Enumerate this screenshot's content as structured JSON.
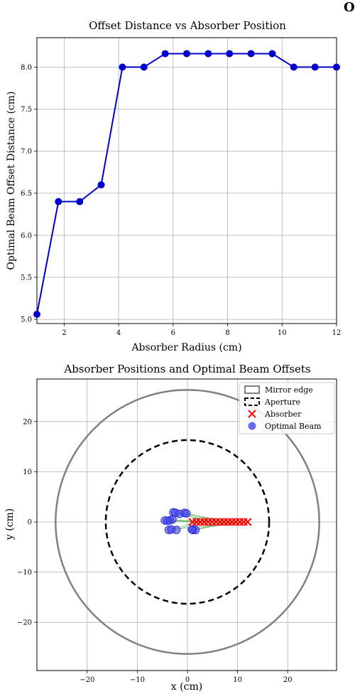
{
  "figure": {
    "suptitle": "O"
  },
  "chart_data": [
    {
      "type": "line",
      "title": "Offset Distance vs Absorber Position",
      "xlabel": "Absorber Radius (cm)",
      "ylabel": "Optimal Beam Offset Distance (cm)",
      "xlim": [
        1.0,
        12.0
      ],
      "ylim": [
        4.95,
        8.35
      ],
      "xticks": [
        2,
        4,
        6,
        8,
        10,
        12
      ],
      "yticks": [
        5.0,
        5.5,
        6.0,
        6.5,
        7.0,
        7.5,
        8.0
      ],
      "grid": true,
      "color": "#0000cc",
      "series": [
        {
          "x": [
            1.0,
            1.79,
            2.57,
            3.36,
            4.14,
            4.93,
            5.71,
            6.5,
            7.29,
            8.07,
            8.86,
            9.64,
            10.43,
            11.21,
            12.0
          ],
          "y": [
            5.06,
            6.4,
            6.4,
            6.6,
            8.0,
            8.0,
            8.16,
            8.16,
            8.16,
            8.16,
            8.16,
            8.16,
            8.0,
            8.0,
            8.0
          ]
        }
      ]
    },
    {
      "type": "scatter",
      "title": "Absorber Positions and Optimal Beam Offsets",
      "xlabel": "x (cm)",
      "ylabel": "y (cm)",
      "xlim": [
        -29,
        29
      ],
      "ylim": [
        -29,
        29
      ],
      "xticks": [
        -20,
        -10,
        0,
        10,
        20
      ],
      "yticks": [
        -20,
        -10,
        0,
        10,
        20
      ],
      "grid": true,
      "legend_position": "top-right",
      "legend": [
        {
          "label": "Mirror edge",
          "kind": "circle-solid",
          "color": "#808080"
        },
        {
          "label": "Aperture",
          "kind": "circle-dashed",
          "color": "#000000"
        },
        {
          "label": "Absorber",
          "kind": "x-marker",
          "color": "#ff0000"
        },
        {
          "label": "Optimal Beam",
          "kind": "dot-marker",
          "color": "#4444ee"
        }
      ],
      "mirror_edge_radius": 26.3,
      "aperture_radius": 16.3,
      "absorbers": [
        [
          1.0,
          0
        ],
        [
          1.79,
          0
        ],
        [
          2.57,
          0
        ],
        [
          3.36,
          0
        ],
        [
          4.14,
          0
        ],
        [
          4.93,
          0
        ],
        [
          5.71,
          0
        ],
        [
          6.5,
          0
        ],
        [
          7.29,
          0
        ],
        [
          8.07,
          0
        ],
        [
          8.86,
          0
        ],
        [
          9.64,
          0
        ],
        [
          10.43,
          0
        ],
        [
          11.21,
          0
        ],
        [
          12.0,
          0
        ]
      ],
      "optimal_beams": [
        [
          -4.5,
          0.3
        ],
        [
          -3.7,
          -1.6
        ],
        [
          -2.2,
          -1.6
        ],
        [
          -3.0,
          0.5
        ],
        [
          -3.5,
          0.3
        ],
        [
          -2.8,
          1.9
        ],
        [
          -1.6,
          1.6
        ],
        [
          -0.6,
          1.8
        ],
        [
          -0.2,
          1.7
        ],
        [
          1.1,
          -1.6
        ],
        [
          1.6,
          -1.6
        ],
        [
          -4.0,
          0.2
        ],
        [
          -2.4,
          1.8
        ],
        [
          0.9,
          -1.5
        ],
        [
          -3.2,
          -1.5
        ]
      ]
    }
  ]
}
